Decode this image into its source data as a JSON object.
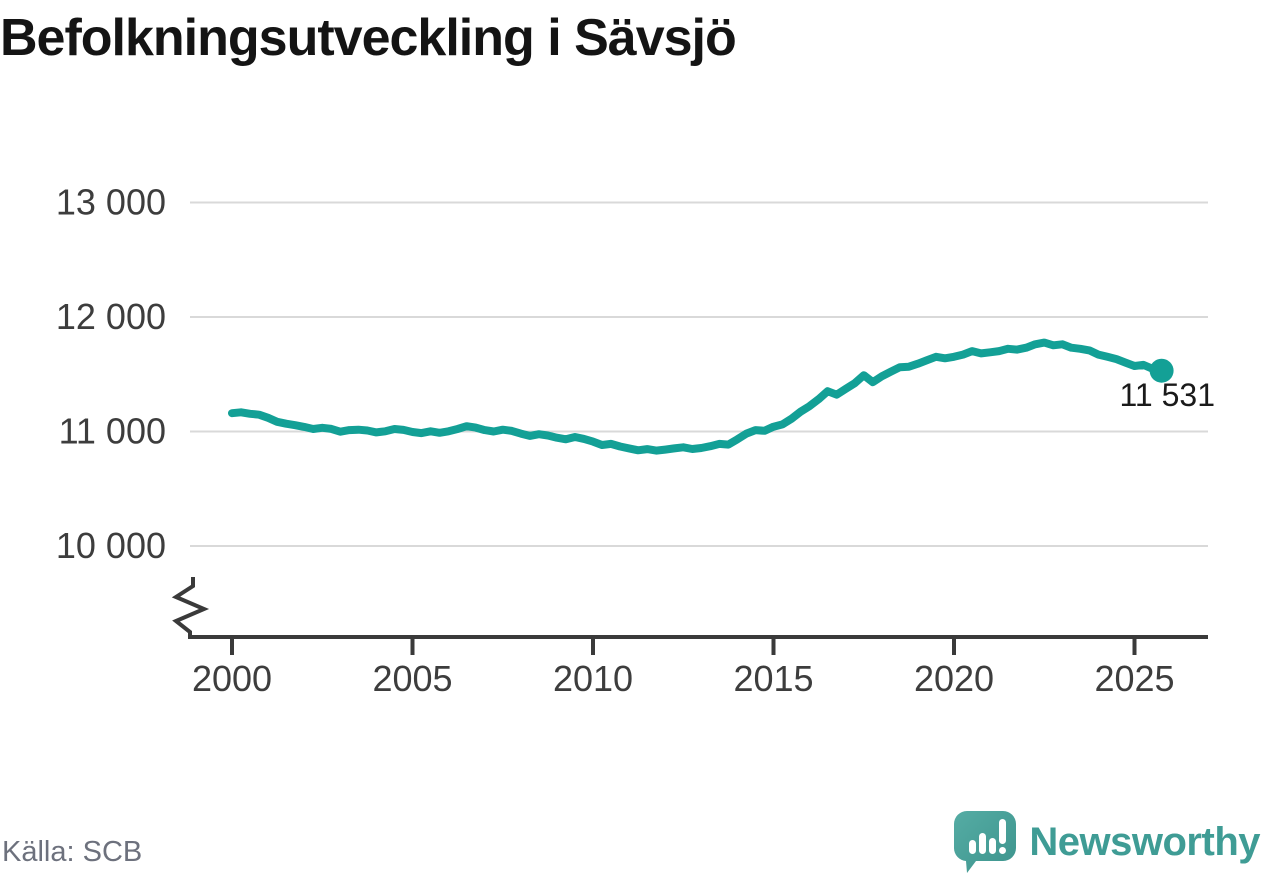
{
  "header": {
    "title": "Befolkningsutveckling i Sävsjö"
  },
  "footer": {
    "source_label": "Källa: SCB",
    "brand_name": "Newsworthy"
  },
  "chart_data": {
    "type": "line",
    "title": "Befolkningsutveckling i Sävsjö",
    "series_name": "Befolkning i Sävsjö",
    "frequency": "quarterly",
    "x_start": 2000.0,
    "x_step": 0.25,
    "values": [
      11160,
      11168,
      11155,
      11147,
      11120,
      11085,
      11068,
      11055,
      11040,
      11022,
      11032,
      11023,
      10998,
      11012,
      11016,
      11009,
      10992,
      11002,
      11022,
      11014,
      10996,
      10986,
      11002,
      10989,
      11002,
      11022,
      11046,
      11034,
      11012,
      11000,
      11016,
      11005,
      10982,
      10962,
      10976,
      10965,
      10946,
      10932,
      10952,
      10935,
      10912,
      10882,
      10892,
      10869,
      10852,
      10836,
      10846,
      10833,
      10842,
      10852,
      10862,
      10847,
      10856,
      10872,
      10892,
      10886,
      10932,
      10982,
      11012,
      11006,
      11042,
      11062,
      11112,
      11173,
      11222,
      11282,
      11352,
      11321,
      11372,
      11422,
      11492,
      11431,
      11482,
      11522,
      11562,
      11566,
      11592,
      11622,
      11652,
      11639,
      11652,
      11672,
      11702,
      11682,
      11692,
      11702,
      11722,
      11715,
      11732,
      11762,
      11776,
      11753,
      11762,
      11732,
      11722,
      11708,
      11672,
      11652,
      11632,
      11602,
      11572,
      11582,
      11548,
      11531
    ],
    "end_value": 11531,
    "end_label": "11 531",
    "yticks": [
      "13 000",
      "12 000",
      "11 000",
      "10 000"
    ],
    "ytick_values": [
      13000,
      12000,
      11000,
      10000
    ],
    "xticks": [
      "2000",
      "2005",
      "2010",
      "2015",
      "2020",
      "2025"
    ],
    "xtick_values": [
      2000,
      2005,
      2010,
      2015,
      2020,
      2025
    ],
    "ylim": [
      10000,
      13000
    ],
    "xlim": [
      2000,
      2026
    ],
    "axis_break": true,
    "grid": "horizontal",
    "legend": "none",
    "line_color": "#13a096",
    "label_color": "#3d3d3d",
    "gridline_color": "#d9d9d9",
    "axis_color": "#3a3a3a"
  },
  "logo": {
    "icon": "newsworthy-speech-bubble-bar-chart-icon",
    "icon_color": "#4aa29b",
    "text_color": "#3f9c95"
  }
}
